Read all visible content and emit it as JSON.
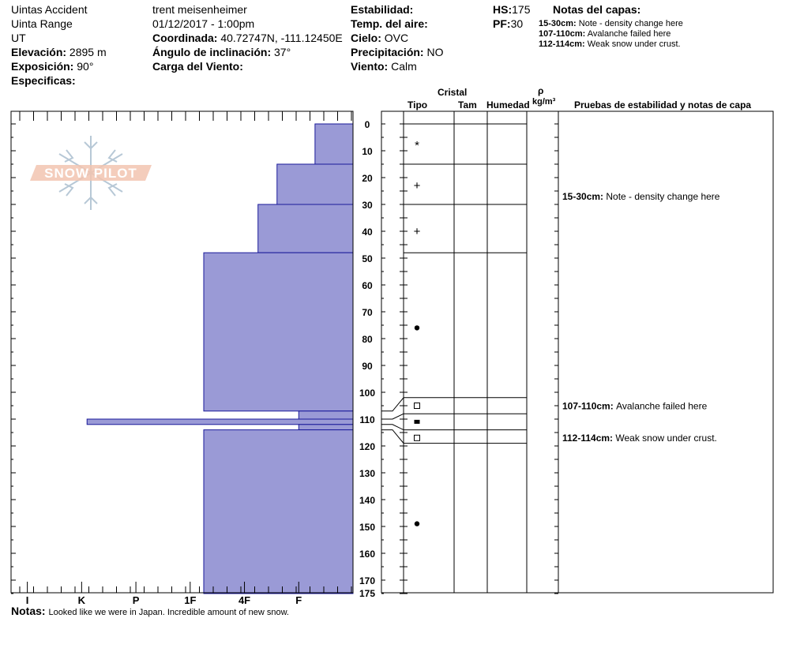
{
  "header": {
    "col1": [
      "Uintas Accident",
      "Uinta Range",
      "UT"
    ],
    "elevation_label": "Elevación:",
    "elevation_value": "2895 m",
    "exposure_label": "Exposición:",
    "exposure_value": "90°",
    "specifics_label": "Especificas:",
    "observer": "trent meisenheimer",
    "datetime": "01/12/2017 - 1:00pm",
    "coord_label": "Coordinada:",
    "coord_value": "40.72747N, -111.12450E",
    "slope_label": "Ángulo de inclinación:",
    "slope_value": "37°",
    "wind_load_label": "Carga del Viento:",
    "stability_label": "Estabilidad:",
    "air_temp_label": "Temp. del aire:",
    "sky_label": "Cielo:",
    "sky_value": "OVC",
    "precip_label": "Precipitación:",
    "precip_value": "NO",
    "wind_label": "Viento:",
    "wind_value": "Calm",
    "hs_label": "HS:",
    "hs_value": "175",
    "pf_label": "PF:",
    "pf_value": "30",
    "layer_notes_title": "Notas del capas:",
    "layer_notes": [
      {
        "depth": "15-30cm:",
        "text": "Note - density change here"
      },
      {
        "depth": "107-110cm:",
        "text": "Avalanche failed here"
      },
      {
        "depth": "112-114cm:",
        "text": "Weak snow under crust."
      }
    ]
  },
  "logo": {
    "text": "SNOW PILOT"
  },
  "columns": {
    "crystal": "Cristal",
    "type": "Tipo",
    "size": "Tam",
    "moisture": "Humedad",
    "density_symbol": "ρ",
    "density_unit": "kg/m³",
    "stability_notes": "Pruebas de estabilidad y notas de capa"
  },
  "footer": {
    "notes_label": "Notas:",
    "notes_text": "Looked like we were in Japan. Incredible amount of new snow."
  },
  "chart_data": {
    "type": "hardness_profile",
    "depth_unit": "cm",
    "depth_range": [
      0,
      175
    ],
    "depth_ticks": [
      0,
      10,
      20,
      30,
      40,
      50,
      60,
      70,
      80,
      90,
      100,
      110,
      120,
      130,
      140,
      150,
      160,
      170,
      175
    ],
    "hardness_scale": [
      "I",
      "K",
      "P",
      "1F",
      "4F",
      "F"
    ],
    "hardness_ticks": [
      {
        "label": "I",
        "value": 6
      },
      {
        "label": "K",
        "value": 5
      },
      {
        "label": "P",
        "value": 4
      },
      {
        "label": "1F",
        "value": 3
      },
      {
        "label": "4F",
        "value": 2
      },
      {
        "label": "F",
        "value": 1
      }
    ],
    "hardness_max": 6.3,
    "layers": [
      {
        "top": 0,
        "bottom": 15,
        "hardness": 0.7
      },
      {
        "top": 15,
        "bottom": 30,
        "hardness": 1.4
      },
      {
        "top": 30,
        "bottom": 48,
        "hardness": 1.75
      },
      {
        "top": 48,
        "bottom": 107,
        "hardness": 2.75
      },
      {
        "top": 107,
        "bottom": 110,
        "hardness": 1.0
      },
      {
        "top": 110,
        "bottom": 112,
        "hardness": 4.9
      },
      {
        "top": 112,
        "bottom": 114,
        "hardness": 1.0
      },
      {
        "top": 114,
        "bottom": 175,
        "hardness": 2.75
      }
    ],
    "layer_lines": [
      0,
      15,
      30,
      48
    ],
    "small_layer_lines": [
      102,
      108,
      114,
      119
    ],
    "crystal_symbols": [
      {
        "depth": 8,
        "symbol": "*"
      },
      {
        "depth": 23,
        "symbol": "+"
      },
      {
        "depth": 40,
        "symbol": "+"
      },
      {
        "depth": 76,
        "symbol": "●"
      },
      {
        "depth": 105,
        "symbol": "□"
      },
      {
        "depth": 111,
        "symbol": "■"
      },
      {
        "depth": 117,
        "symbol": "□"
      },
      {
        "depth": 149,
        "symbol": "●"
      }
    ],
    "notes_column": [
      {
        "depth": 28,
        "label": "15-30cm:",
        "text": "Note - density change here"
      },
      {
        "depth": 106,
        "label": "107-110cm:",
        "text": "Avalanche failed here"
      },
      {
        "depth": 118,
        "label": "112-114cm:",
        "text": "Weak snow under crust."
      }
    ]
  }
}
